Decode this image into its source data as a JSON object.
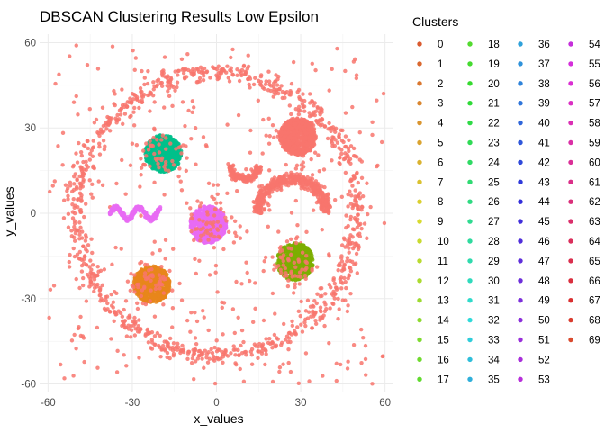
{
  "chart_data": {
    "type": "scatter",
    "title": "DBSCAN Clustering Results Low Epsilon",
    "xlabel": "x_values",
    "ylabel": "y_values",
    "xlim": [
      -63,
      63
    ],
    "ylim": [
      -63,
      63
    ],
    "x_ticks": [
      -60,
      -30,
      0,
      30,
      60
    ],
    "y_ticks": [
      -60,
      -30,
      0,
      30,
      60
    ],
    "x_tick_labels": [
      "-60",
      "-30",
      "0",
      "30",
      "60"
    ],
    "y_tick_labels": [
      "-60",
      "-30",
      "0",
      "30",
      "60"
    ],
    "grid": true,
    "legend": {
      "title": "Clusters",
      "placement": "right",
      "entries": [
        "0",
        "1",
        "2",
        "3",
        "4",
        "5",
        "6",
        "7",
        "8",
        "9",
        "10",
        "11",
        "12",
        "13",
        "14",
        "15",
        "16",
        "17",
        "18",
        "19",
        "20",
        "21",
        "22",
        "23",
        "24",
        "25",
        "26",
        "27",
        "28",
        "29",
        "30",
        "31",
        "32",
        "33",
        "34",
        "35",
        "36",
        "37",
        "38",
        "39",
        "40",
        "41",
        "42",
        "43",
        "44",
        "45",
        "46",
        "47",
        "48",
        "49",
        "50",
        "51",
        "52",
        "53",
        "54",
        "55",
        "56",
        "57",
        "58",
        "59",
        "60",
        "61",
        "62",
        "63",
        "64",
        "65",
        "66",
        "67",
        "68",
        "69"
      ]
    },
    "structures": [
      {
        "shape": "ring",
        "label": "0",
        "color": "#F8766D",
        "center": [
          0,
          0
        ],
        "radius": 50
      },
      {
        "shape": "noise",
        "label": "0",
        "color": "#F8766D",
        "xrange": [
          -60,
          60
        ],
        "yrange": [
          -60,
          60
        ]
      },
      {
        "shape": "blob",
        "label": "0",
        "color": "#F8766D",
        "center": [
          29,
          27
        ]
      },
      {
        "shape": "blob",
        "label": "3",
        "color": "#E7861B",
        "center": [
          -23,
          -25
        ]
      },
      {
        "shape": "blob",
        "label": "24",
        "color": "#00C08B",
        "center": [
          -19,
          21
        ]
      },
      {
        "shape": "blob",
        "label": "53",
        "color": "#E76BF3",
        "center": [
          -3,
          -4
        ]
      },
      {
        "shape": "blob",
        "label": "20",
        "color": "#7CAE00",
        "center": [
          28,
          -17
        ]
      },
      {
        "shape": "arc",
        "label": "0",
        "color": "#F8766D",
        "center": [
          27,
          0
        ],
        "radius": 12
      },
      {
        "shape": "arc",
        "label": "0",
        "color": "#F8766D",
        "center": [
          10,
          17
        ],
        "radius": 5
      },
      {
        "shape": "wave",
        "label": "53",
        "color": "#E76BF3",
        "xrange": [
          -38,
          -20
        ],
        "y": 0
      }
    ]
  }
}
